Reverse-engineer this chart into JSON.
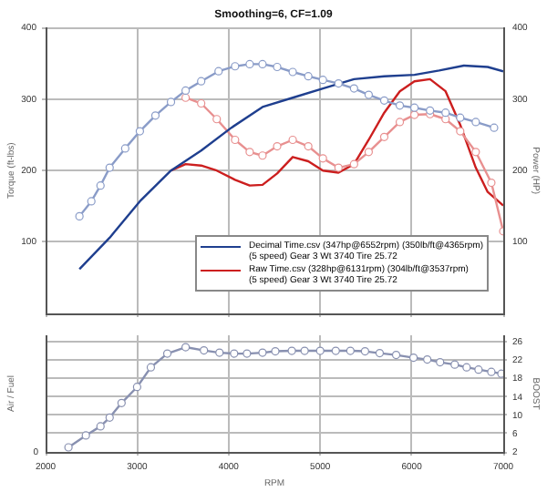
{
  "chart_data": [
    {
      "type": "line",
      "title": "Smoothing=6, CF=1.09",
      "ylabel": "Torque (ft-lbs)",
      "y2label": "Power (HP)",
      "xlim": [
        2000,
        7000
      ],
      "xticks": [
        2000,
        3000,
        4000,
        5000,
        6000,
        7000
      ],
      "ylim": [
        0,
        400
      ],
      "yticks": [
        100,
        200,
        300,
        400
      ],
      "y2lim": [
        0,
        400
      ],
      "y2ticks": [
        100,
        200,
        300,
        400
      ],
      "tick_labels": "y",
      "grid": true,
      "legend": "bottom right",
      "series": [
        {
          "color": "#8a9cc8",
          "axis": "y",
          "marker": "circle",
          "x": [
            2370,
            2500,
            2600,
            2700,
            2870,
            3030,
            3200,
            3370,
            3530,
            3700,
            3890,
            4070,
            4230,
            4370,
            4530,
            4700,
            4870,
            5030,
            5200,
            5370,
            5530,
            5700,
            5870,
            6030,
            6200,
            6370,
            6530,
            6700,
            6900
          ],
          "values": [
            136,
            157,
            179,
            204,
            231,
            255,
            277,
            296,
            312,
            325,
            339,
            346,
            349,
            349,
            345,
            338,
            332,
            327,
            322,
            315,
            306,
            298,
            291,
            288,
            284,
            281,
            274,
            268,
            260
          ]
        },
        {
          "name": "Decimal Time.csv (347hp@6552rpm) (350lb/ft@4365rpm)\n(5 speed) Gear 3 Wt 3740 Tire 25.72",
          "color": "#1f3f8f",
          "axis": "y2",
          "marker": "none",
          "x": [
            2370,
            2700,
            3030,
            3370,
            3700,
            4030,
            4370,
            4700,
            5030,
            5370,
            5700,
            6030,
            6300,
            6570,
            6830,
            7000
          ],
          "values": [
            62,
            106,
            157,
            200,
            228,
            260,
            289,
            302,
            315,
            328,
            332,
            334,
            340,
            347,
            345,
            339
          ]
        },
        {
          "color": "#e89090",
          "axis": "y",
          "marker": "circle",
          "x": [
            3530,
            3700,
            3870,
            4070,
            4230,
            4370,
            4530,
            4700,
            4870,
            5030,
            5200,
            5370,
            5530,
            5700,
            5870,
            6030,
            6200,
            6370,
            6530,
            6700,
            6870,
            7000
          ],
          "values": [
            302,
            294,
            272,
            243,
            226,
            221,
            234,
            243,
            234,
            217,
            204,
            209,
            226,
            247,
            268,
            278,
            279,
            272,
            255,
            226,
            183,
            115
          ]
        },
        {
          "name": "Raw Time.csv (328hp@6131rpm) (304lb/ft@3537rpm)\n(5 speed) Gear 3 Wt 3740 Tire 25.72",
          "color": "#cc1f1f",
          "axis": "y2",
          "marker": "none",
          "x": [
            3370,
            3530,
            3700,
            3870,
            4070,
            4230,
            4370,
            4530,
            4700,
            4870,
            5030,
            5200,
            5370,
            5530,
            5700,
            5870,
            6030,
            6200,
            6370,
            6530,
            6700,
            6830,
            7000
          ],
          "values": [
            200,
            209,
            207,
            200,
            187,
            179,
            180,
            196,
            219,
            213,
            200,
            197,
            209,
            243,
            281,
            311,
            325,
            328,
            311,
            264,
            204,
            170,
            151
          ]
        }
      ]
    },
    {
      "type": "line",
      "xlabel": "RPM",
      "ylabel": "Air / Fuel",
      "y2label": "BOOST",
      "annotations": [
        "0"
      ],
      "xlim": [
        2000,
        7000
      ],
      "xticks": [
        2000,
        3000,
        4000,
        5000,
        6000,
        7000
      ],
      "y2lim": [
        2,
        27.5
      ],
      "y2ticks": [
        2,
        6,
        10,
        14,
        18,
        22,
        26
      ],
      "grid": true,
      "series": [
        {
          "color": "#8890b0",
          "axis": "y2",
          "marker": "circle",
          "x": [
            2250,
            2440,
            2600,
            2700,
            2830,
            3000,
            3150,
            3330,
            3530,
            3730,
            3900,
            4060,
            4200,
            4370,
            4510,
            4690,
            4830,
            5000,
            5170,
            5330,
            5490,
            5650,
            5830,
            6020,
            6170,
            6310,
            6470,
            6600,
            6730,
            6870,
            6980
          ],
          "values": [
            3.0,
            5.6,
            7.6,
            9.5,
            12.7,
            16.2,
            20.5,
            23.5,
            24.9,
            24.2,
            23.7,
            23.5,
            23.5,
            23.7,
            24,
            24.1,
            24.1,
            24.1,
            24.1,
            24.1,
            24,
            23.6,
            23.2,
            22.6,
            22.2,
            21.6,
            21.1,
            20.5,
            20.0,
            19.5,
            19.1
          ]
        }
      ]
    }
  ]
}
